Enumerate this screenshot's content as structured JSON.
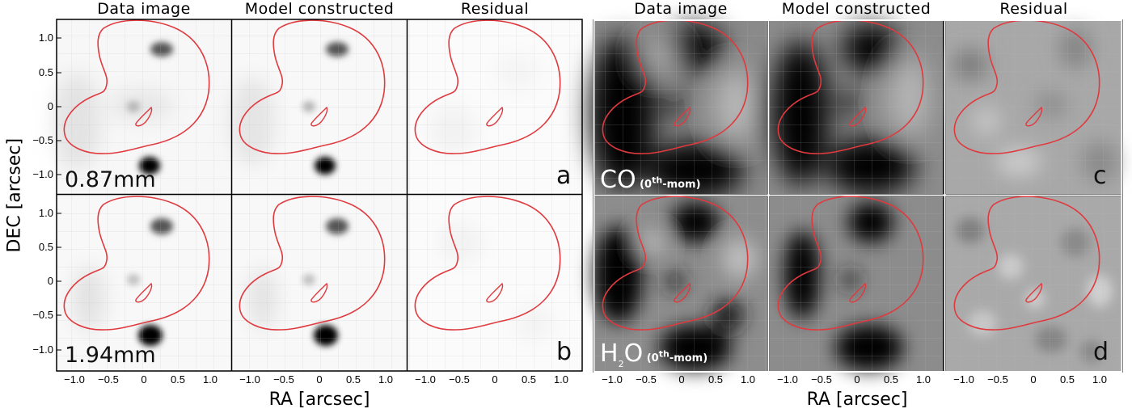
{
  "column_titles": [
    "Data image",
    "Model constructed",
    "Residual",
    "Data image",
    "Model constructed",
    "Residual"
  ],
  "y_axis_label": "DEC  [arcsec]",
  "x_axis_label": "RA  [arcsec]",
  "y_ticks": [
    "1.0",
    "0.5",
    "0",
    "−0.5",
    "−1.0"
  ],
  "x_ticks": [
    "−1.0",
    "−0.5",
    "0",
    "0.5",
    "1.0"
  ],
  "panel_labels": {
    "a": "a",
    "b": "b",
    "c": "c",
    "d": "d",
    "row1_wavelength": "0.87mm",
    "row2_wavelength": "1.94mm",
    "co_main": "CO",
    "h2o_main_h": "H",
    "h2o_main_sub": "2",
    "h2o_main_o": "O",
    "moment_open": "(0",
    "moment_sup": "th",
    "moment_close": "-mom)"
  },
  "colors": {
    "critical_curve": "#e0393e",
    "frame": "#000000",
    "frame_right": "#ffffff"
  }
}
